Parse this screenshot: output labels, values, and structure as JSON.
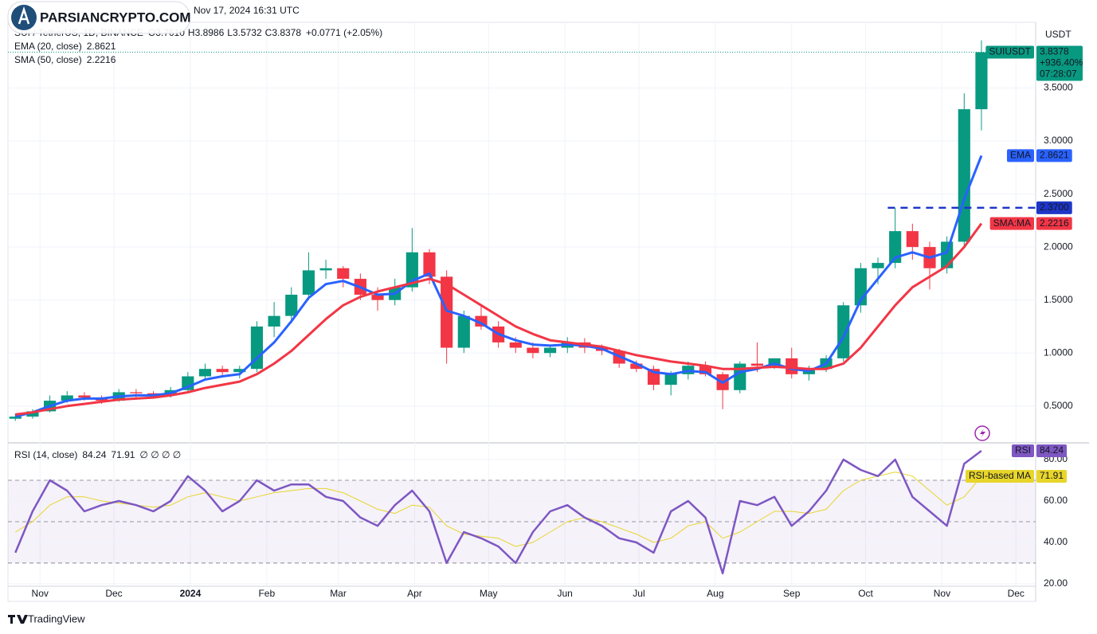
{
  "header": {
    "published": "Nov 17, 2024 16:31 UTC",
    "symbol": "SUI / TetherUS, 1D, BINANCE",
    "ohlc": [
      {
        "key": "O",
        "value": "3.7610"
      },
      {
        "key": "H",
        "value": "3.8986"
      },
      {
        "key": "L",
        "value": "3.5732"
      },
      {
        "key": "C",
        "value": "3.8378"
      }
    ],
    "change": "+0.0771 (+2.05%)"
  },
  "watermark": "PARSIANCRYPTO.COM",
  "footer": "TradingView",
  "chart_data": [
    {
      "type": "candlestick",
      "symbol": "SUIUSDT",
      "currency": "USDT",
      "change_label": "+936.40%",
      "countdown": "07:28:07",
      "up_color": "#089981",
      "down_color": "#f23645",
      "x": [
        "2023-10-22",
        "2023-10-29",
        "2023-11-05",
        "2023-11-12",
        "2023-11-19",
        "2023-11-26",
        "2023-12-03",
        "2023-12-10",
        "2023-12-17",
        "2023-12-24",
        "2023-12-31",
        "2024-01-07",
        "2024-01-14",
        "2024-01-21",
        "2024-01-28",
        "2024-02-04",
        "2024-02-11",
        "2024-02-18",
        "2024-02-25",
        "2024-03-03",
        "2024-03-10",
        "2024-03-17",
        "2024-03-24",
        "2024-03-31",
        "2024-04-07",
        "2024-04-14",
        "2024-04-21",
        "2024-04-28",
        "2024-05-05",
        "2024-05-12",
        "2024-05-19",
        "2024-05-26",
        "2024-06-02",
        "2024-06-09",
        "2024-06-16",
        "2024-06-23",
        "2024-06-30",
        "2024-07-07",
        "2024-07-14",
        "2024-07-21",
        "2024-07-28",
        "2024-08-04",
        "2024-08-11",
        "2024-08-18",
        "2024-08-25",
        "2024-09-01",
        "2024-09-08",
        "2024-09-15",
        "2024-09-22",
        "2024-09-29",
        "2024-10-06",
        "2024-10-13",
        "2024-10-20",
        "2024-10-27",
        "2024-11-03",
        "2024-11-10",
        "2024-11-17"
      ],
      "open": [
        0.38,
        0.4,
        0.45,
        0.55,
        0.6,
        0.58,
        0.55,
        0.63,
        0.62,
        0.6,
        0.65,
        0.78,
        0.85,
        0.82,
        0.85,
        1.25,
        1.35,
        1.55,
        1.78,
        1.8,
        1.7,
        1.55,
        1.5,
        1.62,
        1.95,
        1.72,
        1.05,
        1.35,
        1.25,
        1.1,
        1.05,
        1.0,
        1.05,
        1.1,
        1.05,
        1.02,
        0.9,
        0.85,
        0.7,
        0.8,
        0.88,
        0.8,
        0.65,
        0.9,
        0.88,
        0.95,
        0.8,
        0.85,
        0.95,
        1.45,
        1.8,
        1.85,
        2.15,
        2.0,
        1.8,
        2.05,
        3.3
      ],
      "high": [
        0.43,
        0.47,
        0.6,
        0.64,
        0.63,
        0.6,
        0.66,
        0.66,
        0.64,
        0.68,
        0.82,
        0.9,
        0.88,
        0.88,
        1.3,
        1.48,
        1.62,
        1.95,
        1.88,
        1.82,
        1.75,
        1.62,
        1.7,
        2.18,
        1.98,
        1.78,
        1.4,
        1.45,
        1.3,
        1.15,
        1.1,
        1.08,
        1.15,
        1.14,
        1.08,
        1.04,
        0.93,
        0.88,
        0.83,
        0.92,
        0.92,
        0.82,
        0.92,
        1.1,
        0.95,
        1.05,
        0.88,
        0.98,
        1.48,
        1.85,
        1.9,
        2.37,
        2.22,
        2.05,
        2.1,
        3.45,
        3.95
      ],
      "low": [
        0.36,
        0.38,
        0.44,
        0.53,
        0.55,
        0.52,
        0.54,
        0.58,
        0.57,
        0.58,
        0.63,
        0.75,
        0.78,
        0.76,
        0.82,
        1.15,
        1.28,
        1.5,
        1.7,
        1.62,
        1.5,
        1.4,
        1.45,
        1.58,
        1.65,
        0.9,
        1.0,
        1.22,
        1.05,
        1.0,
        0.95,
        0.96,
        1.0,
        1.0,
        0.98,
        0.86,
        0.82,
        0.65,
        0.6,
        0.75,
        0.78,
        0.47,
        0.62,
        0.82,
        0.85,
        0.76,
        0.74,
        0.82,
        0.92,
        1.38,
        1.65,
        1.8,
        1.88,
        1.6,
        1.75,
        2.0,
        3.1
      ],
      "close": [
        0.4,
        0.45,
        0.55,
        0.6,
        0.58,
        0.55,
        0.63,
        0.62,
        0.6,
        0.65,
        0.78,
        0.85,
        0.82,
        0.85,
        1.25,
        1.35,
        1.55,
        1.78,
        1.8,
        1.7,
        1.55,
        1.5,
        1.62,
        1.95,
        1.72,
        1.05,
        1.35,
        1.25,
        1.1,
        1.05,
        1.0,
        1.05,
        1.1,
        1.05,
        1.02,
        0.9,
        0.85,
        0.7,
        0.8,
        0.88,
        0.8,
        0.65,
        0.9,
        0.88,
        0.95,
        0.8,
        0.85,
        0.95,
        1.45,
        1.8,
        1.85,
        2.15,
        2.0,
        1.8,
        2.05,
        3.3,
        3.8378
      ],
      "series": [
        {
          "name": "EMA (20, close)",
          "short_name": "EMA",
          "color": "#2962ff",
          "values": [
            0.4,
            0.44,
            0.5,
            0.55,
            0.57,
            0.57,
            0.59,
            0.6,
            0.6,
            0.62,
            0.68,
            0.75,
            0.78,
            0.8,
            0.95,
            1.1,
            1.3,
            1.52,
            1.65,
            1.68,
            1.62,
            1.55,
            1.56,
            1.68,
            1.75,
            1.4,
            1.35,
            1.28,
            1.18,
            1.12,
            1.08,
            1.07,
            1.08,
            1.07,
            1.04,
            0.97,
            0.9,
            0.82,
            0.8,
            0.83,
            0.82,
            0.72,
            0.82,
            0.85,
            0.9,
            0.85,
            0.83,
            0.9,
            1.15,
            1.5,
            1.7,
            1.9,
            1.95,
            1.9,
            1.95,
            2.45,
            2.8621
          ]
        },
        {
          "name": "SMA (50, close)",
          "short_name": "SMA:MA",
          "color": "#f23645",
          "values": [
            0.42,
            0.44,
            0.47,
            0.5,
            0.52,
            0.54,
            0.56,
            0.57,
            0.58,
            0.6,
            0.63,
            0.67,
            0.7,
            0.73,
            0.8,
            0.9,
            1.02,
            1.17,
            1.32,
            1.45,
            1.53,
            1.58,
            1.62,
            1.66,
            1.7,
            1.65,
            1.55,
            1.45,
            1.35,
            1.25,
            1.18,
            1.12,
            1.1,
            1.08,
            1.06,
            1.02,
            0.98,
            0.95,
            0.92,
            0.9,
            0.88,
            0.85,
            0.85,
            0.86,
            0.87,
            0.86,
            0.85,
            0.85,
            0.9,
            1.05,
            1.25,
            1.45,
            1.62,
            1.72,
            1.82,
            2.0,
            2.2216
          ]
        }
      ],
      "level": {
        "value": 2.37,
        "label": "2.3700",
        "from": "2024-10-10",
        "color": "#1e35c8"
      },
      "xlim": [
        "2023-10-19",
        "2024-12-09"
      ],
      "xticks": [
        {
          "value": "2023-11-01",
          "label": "Nov"
        },
        {
          "value": "2023-12-01",
          "label": "Dec"
        },
        {
          "value": "2024-01-01",
          "label": "2024"
        },
        {
          "value": "2024-02-01",
          "label": "Feb"
        },
        {
          "value": "2024-03-01",
          "label": "Mar"
        },
        {
          "value": "2024-04-01",
          "label": "Apr"
        },
        {
          "value": "2024-05-01",
          "label": "May"
        },
        {
          "value": "2024-06-01",
          "label": "Jun"
        },
        {
          "value": "2024-07-01",
          "label": "Jul"
        },
        {
          "value": "2024-08-01",
          "label": "Aug"
        },
        {
          "value": "2024-09-01",
          "label": "Sep"
        },
        {
          "value": "2024-10-01",
          "label": "Oct"
        },
        {
          "value": "2024-11-01",
          "label": "Nov"
        },
        {
          "value": "2024-12-01",
          "label": "Dec"
        }
      ],
      "ylim": [
        0.16,
        4.12
      ],
      "yticks": [
        {
          "value": 0.5,
          "label": "0.5000"
        },
        {
          "value": 1,
          "label": "1.0000"
        },
        {
          "value": 1.5,
          "label": "1.5000"
        },
        {
          "value": 2,
          "label": "2.0000"
        },
        {
          "value": 2.5,
          "label": "2.5000"
        },
        {
          "value": 3,
          "label": "3.0000"
        },
        {
          "value": 3.5,
          "label": "3.5000"
        }
      ],
      "grid": true
    },
    {
      "type": "line",
      "title": "RSI (14, close)",
      "null_marks": "∅ ∅ ∅ ∅",
      "x": [
        "2023-10-22",
        "2023-10-29",
        "2023-11-05",
        "2023-11-12",
        "2023-11-19",
        "2023-11-26",
        "2023-12-03",
        "2023-12-10",
        "2023-12-17",
        "2023-12-24",
        "2023-12-31",
        "2024-01-07",
        "2024-01-14",
        "2024-01-21",
        "2024-01-28",
        "2024-02-04",
        "2024-02-11",
        "2024-02-18",
        "2024-02-25",
        "2024-03-03",
        "2024-03-10",
        "2024-03-17",
        "2024-03-24",
        "2024-03-31",
        "2024-04-07",
        "2024-04-14",
        "2024-04-21",
        "2024-04-28",
        "2024-05-05",
        "2024-05-12",
        "2024-05-19",
        "2024-05-26",
        "2024-06-02",
        "2024-06-09",
        "2024-06-16",
        "2024-06-23",
        "2024-06-30",
        "2024-07-07",
        "2024-07-14",
        "2024-07-21",
        "2024-07-28",
        "2024-08-04",
        "2024-08-11",
        "2024-08-18",
        "2024-08-25",
        "2024-09-01",
        "2024-09-08",
        "2024-09-15",
        "2024-09-22",
        "2024-09-29",
        "2024-10-06",
        "2024-10-13",
        "2024-10-20",
        "2024-10-27",
        "2024-11-03",
        "2024-11-10",
        "2024-11-17"
      ],
      "series": [
        {
          "name": "RSI",
          "color": "#7e57c2",
          "values": [
            35,
            55,
            70,
            65,
            55,
            58,
            60,
            58,
            55,
            60,
            72,
            65,
            55,
            60,
            70,
            65,
            68,
            68,
            62,
            60,
            52,
            48,
            58,
            65,
            55,
            30,
            45,
            42,
            38,
            30,
            45,
            55,
            58,
            52,
            48,
            42,
            40,
            35,
            55,
            60,
            52,
            25,
            60,
            58,
            62,
            48,
            55,
            65,
            80,
            75,
            72,
            80,
            62,
            55,
            48,
            78,
            84.24
          ]
        },
        {
          "name": "RSI-based MA",
          "color": "#e8d52a",
          "values": [
            45,
            50,
            58,
            62,
            62,
            60,
            59,
            58,
            57,
            58,
            62,
            64,
            62,
            60,
            62,
            64,
            65,
            66,
            66,
            64,
            60,
            56,
            54,
            58,
            57,
            48,
            44,
            43,
            42,
            38,
            40,
            45,
            50,
            52,
            50,
            47,
            44,
            40,
            42,
            48,
            50,
            42,
            45,
            50,
            55,
            55,
            54,
            56,
            65,
            70,
            72,
            74,
            72,
            65,
            58,
            62,
            71.91
          ]
        }
      ],
      "bands": [
        30,
        50,
        70
      ],
      "xlim": [
        "2023-10-19",
        "2024-12-09"
      ],
      "ylim": [
        19.2,
        87.7
      ],
      "yticks": [
        {
          "value": 20,
          "label": "20.00"
        },
        {
          "value": 40,
          "label": "40.00"
        },
        {
          "value": 60,
          "label": "60.00"
        },
        {
          "value": 80,
          "label": "80.00"
        }
      ],
      "grid": true
    }
  ]
}
